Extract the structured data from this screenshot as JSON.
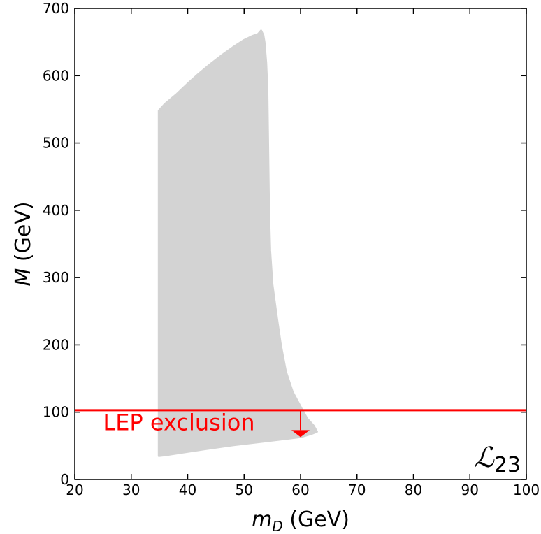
{
  "chart_data": {
    "type": "area",
    "xlabel": {
      "main": "m",
      "sub": "D",
      "unit": " (GeV)"
    },
    "ylabel": {
      "main": "M",
      "unit": " (GeV)"
    },
    "xlim": [
      20,
      100
    ],
    "ylim": [
      0,
      700
    ],
    "xticks": [
      "20",
      "30",
      "40",
      "50",
      "60",
      "70",
      "80",
      "90",
      "100"
    ],
    "yticks": [
      "0",
      "100",
      "200",
      "300",
      "400",
      "500",
      "600",
      "700"
    ],
    "grid": false,
    "series": [
      {
        "color": "#d3d3d3",
        "points": [
          [
            34.9,
            35
          ],
          [
            34.9,
            548
          ],
          [
            36,
            558
          ],
          [
            38,
            572
          ],
          [
            40,
            588
          ],
          [
            42,
            603
          ],
          [
            44,
            617
          ],
          [
            46,
            630
          ],
          [
            48,
            642
          ],
          [
            50,
            653
          ],
          [
            51.5,
            659
          ],
          [
            52.5,
            662
          ],
          [
            53,
            667
          ],
          [
            53.4,
            660
          ],
          [
            53.6,
            650
          ],
          [
            53.9,
            620
          ],
          [
            54.1,
            580
          ],
          [
            54.2,
            520
          ],
          [
            54.3,
            460
          ],
          [
            54.4,
            400
          ],
          [
            54.6,
            340
          ],
          [
            55,
            290
          ],
          [
            55.8,
            240
          ],
          [
            56.5,
            200
          ],
          [
            57.4,
            160
          ],
          [
            58.6,
            130
          ],
          [
            60.2,
            105
          ],
          [
            61.2,
            90
          ],
          [
            62.3,
            80
          ],
          [
            62.9,
            71
          ],
          [
            62,
            68
          ],
          [
            60,
            63
          ],
          [
            57,
            60
          ],
          [
            53,
            56
          ],
          [
            48,
            51
          ],
          [
            43,
            45
          ],
          [
            39,
            40
          ],
          [
            36,
            36
          ]
        ]
      }
    ],
    "limit_line": {
      "y": 103,
      "color": "#ff0000"
    },
    "arrow": {
      "x": 60,
      "y_from": 103,
      "y_to": 63,
      "color": "#ff0000"
    },
    "annotation": {
      "text": "LEP exclusion",
      "x": 25,
      "y": 73,
      "color": "#ff0000"
    },
    "panel_label": {
      "main": "ℒ",
      "sub": "23"
    }
  }
}
